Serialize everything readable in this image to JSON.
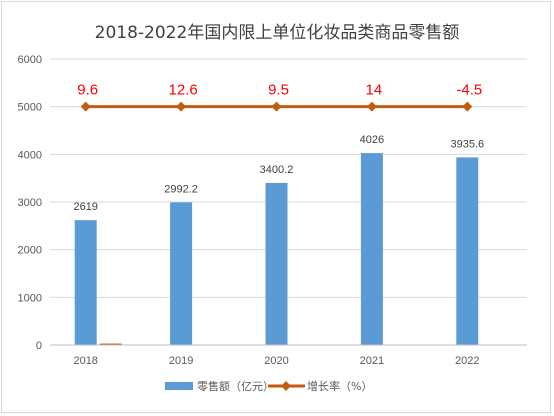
{
  "chart_data": {
    "type": "bar",
    "title": "2018-2022年国内限上单位化妆品类商品零售额",
    "categories": [
      "2018",
      "2019",
      "2020",
      "2021",
      "2022"
    ],
    "y_ticks": [
      "0",
      "1000",
      "2000",
      "3000",
      "4000",
      "5000",
      "6000"
    ],
    "ylim": [
      0,
      6000
    ],
    "grid": true,
    "legend_position": "bottom",
    "series": [
      {
        "name": "零售额（亿元）",
        "type": "bar",
        "color": "#5b9bd5",
        "values": [
          2619,
          2992.2,
          3400.2,
          4026,
          3935.6
        ],
        "labels": [
          "2619",
          "2992.2",
          "3400.2",
          "4026",
          "3935.6"
        ]
      },
      {
        "name": "增长率（%）",
        "type": "line",
        "color": "#c55a11",
        "label_color": "#ff0000",
        "values": [
          9.6,
          12.6,
          9.5,
          14,
          -4.5
        ],
        "labels": [
          "9.6",
          "12.6",
          "9.5",
          "14",
          "-4.5"
        ],
        "plotted_at": 5000
      }
    ],
    "stray_bar": {
      "category": "2018",
      "value": 30,
      "color": "#c55a11"
    }
  }
}
